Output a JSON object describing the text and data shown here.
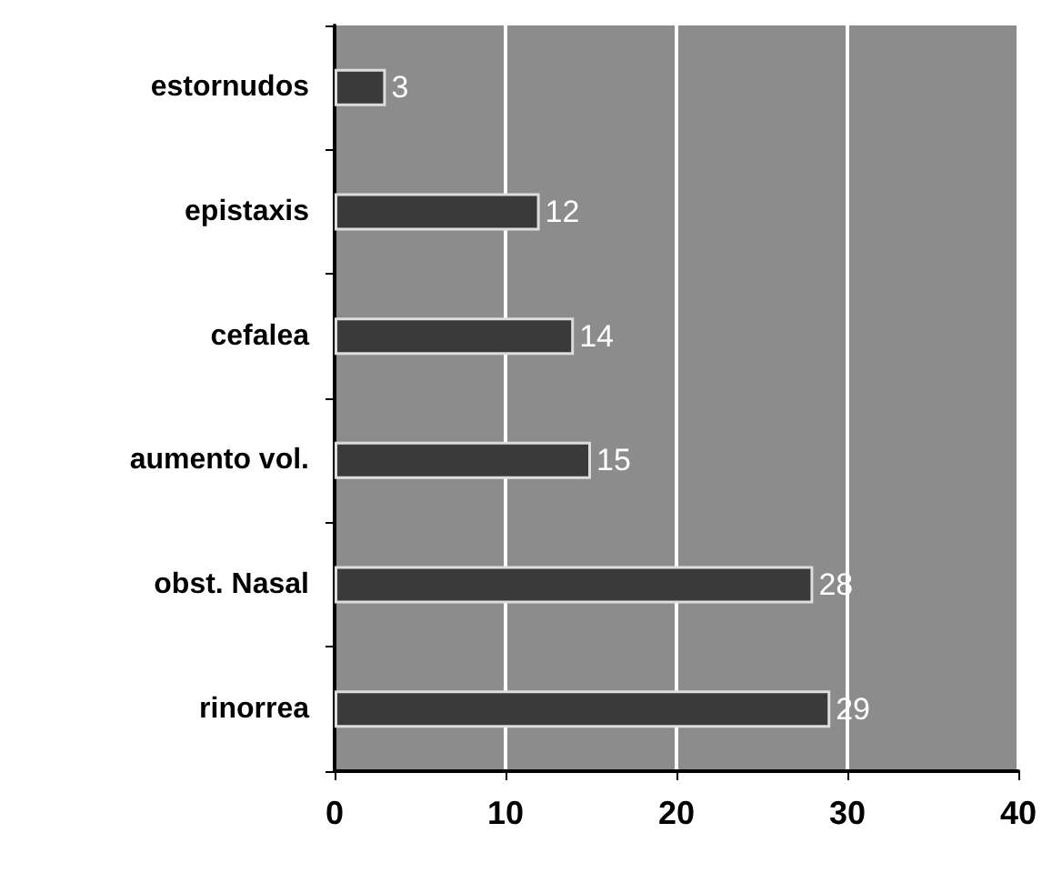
{
  "chart_data": {
    "type": "bar",
    "orientation": "horizontal",
    "categories": [
      "estornudos",
      "epistaxis",
      "cefalea",
      "aumento vol.",
      "obst. Nasal",
      "rinorrea"
    ],
    "values": [
      3,
      12,
      14,
      15,
      28,
      29
    ],
    "color": "#3a3a3a",
    "xlim": [
      0,
      40
    ],
    "xticks": [
      0,
      10,
      20,
      30,
      40
    ],
    "grid": "x",
    "data_labels": true
  }
}
